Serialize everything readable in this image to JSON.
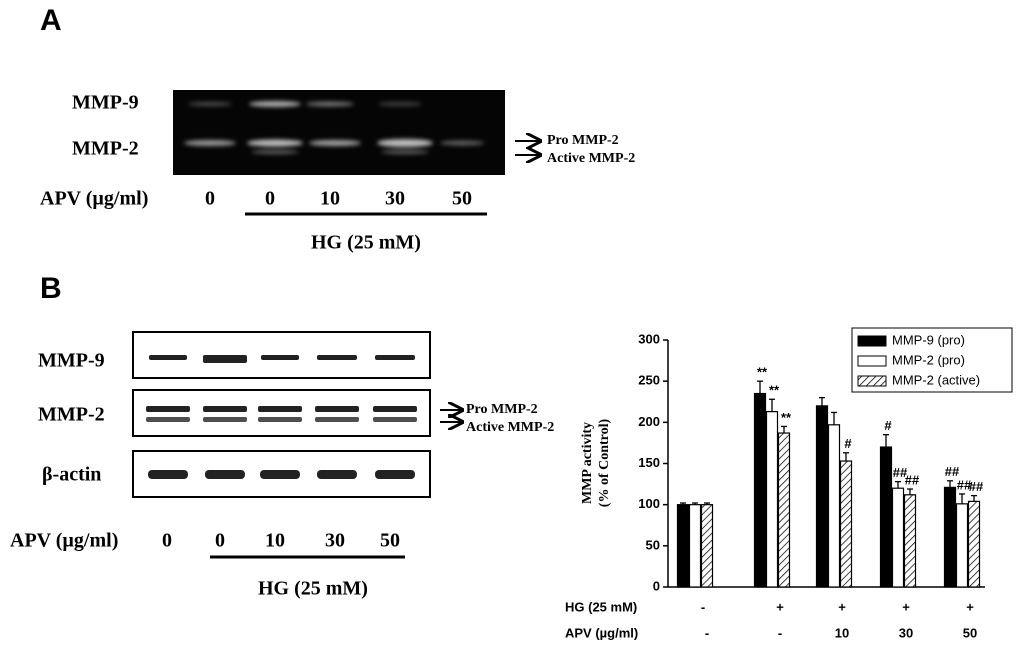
{
  "panel_a": {
    "label": "A",
    "rows": [
      "MMP-9",
      "MMP-2"
    ],
    "arrows": [
      "Pro  MMP-2",
      "Active MMP-2"
    ],
    "apv_label": "APV (µg/ml)",
    "apv_values": [
      "0",
      "0",
      "10",
      "30",
      "50"
    ],
    "hg_label": "HG (25 mM)"
  },
  "panel_b": {
    "label": "B",
    "rows": [
      "MMP-9",
      "MMP-2",
      "β-actin"
    ],
    "arrows": [
      "Pro  MMP-2",
      "Active MMP-2"
    ],
    "apv_label": "APV (µg/ml)",
    "apv_values": [
      "0",
      "0",
      "10",
      "30",
      "50"
    ],
    "hg_label": "HG (25 mM)"
  },
  "chart_data": {
    "type": "bar",
    "ylabel": [
      "MMP activity",
      "(% of Control)"
    ],
    "ylim": [
      0,
      300
    ],
    "yticks": [
      0,
      50,
      100,
      150,
      200,
      250,
      300
    ],
    "category_rows": [
      {
        "label": "HG (25 mM)",
        "values": [
          "-",
          "+",
          "+",
          "+",
          "+"
        ]
      },
      {
        "label": "APV (µg/ml)",
        "values": [
          "-",
          "-",
          "10",
          "30",
          "50"
        ]
      }
    ],
    "legend": "upper right",
    "series": [
      {
        "name": "MMP-9 (pro)",
        "color": "#000000",
        "fill": "solid",
        "values": [
          100,
          235,
          220,
          170,
          121
        ],
        "errors": [
          2,
          15,
          10,
          15,
          8
        ],
        "annotations": [
          null,
          "**",
          null,
          "#",
          "##"
        ]
      },
      {
        "name": "MMP-2 (pro)",
        "color": "#ffffff",
        "fill": "solid",
        "values": [
          100,
          213,
          197,
          120,
          101
        ],
        "errors": [
          2,
          15,
          15,
          8,
          12
        ],
        "annotations": [
          null,
          "**",
          null,
          "##",
          "##"
        ]
      },
      {
        "name": "MMP-2 (active)",
        "color": "#ffffff",
        "fill": "hatch",
        "values": [
          100,
          187,
          153,
          112,
          104
        ],
        "errors": [
          2,
          8,
          10,
          7,
          7
        ],
        "annotations": [
          null,
          "**",
          "#",
          "##",
          "##"
        ]
      }
    ]
  }
}
